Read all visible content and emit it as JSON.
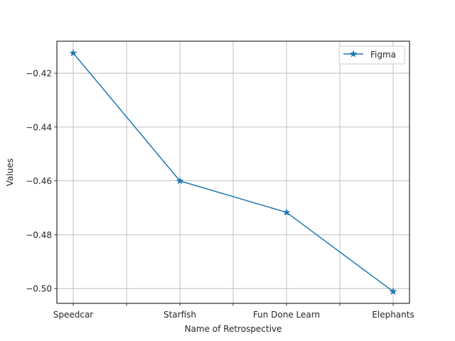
{
  "chart_data": {
    "type": "line",
    "categories": [
      "Speedcar",
      "Starfish",
      "Fun Done Learn",
      "Elephants"
    ],
    "x_minor_ticks": [
      0.5,
      1.5,
      2.5
    ],
    "series": [
      {
        "name": "Figma",
        "values": [
          -0.4125,
          -0.46,
          -0.4717,
          -0.5011
        ],
        "color": "#1f77b4",
        "marker": "star"
      }
    ],
    "xlabel": "Name of Retrospective",
    "ylabel": "Values",
    "ylim": [
      -0.5055,
      -0.4081
    ],
    "yticks": [
      -0.42,
      -0.44,
      -0.46,
      -0.48,
      -0.5
    ],
    "ytick_labels": [
      "−0.42",
      "−0.44",
      "−0.46",
      "−0.48",
      "−0.50"
    ],
    "grid": true,
    "legend_position": "top-right"
  }
}
